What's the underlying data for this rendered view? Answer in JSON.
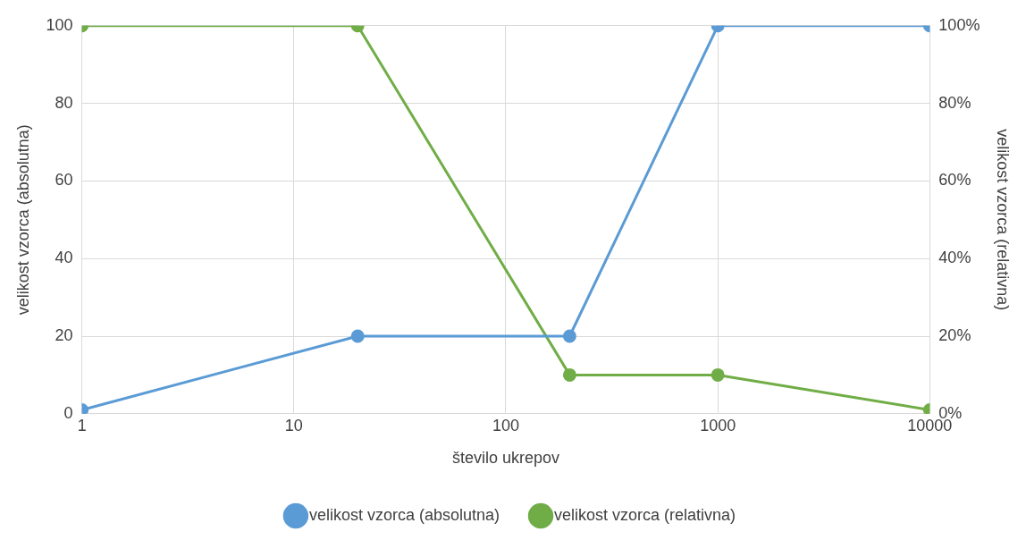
{
  "chart_data": {
    "type": "line",
    "xlabel": "število ukrepov",
    "ylabel": "velikost vzorca (absolutna)",
    "y2label": "velikost vzorca (relativna)",
    "x": [
      1,
      20,
      200,
      1000,
      10000
    ],
    "series": [
      {
        "name": "velikost vzorca (absolutna)",
        "color": "#5b9bd5",
        "values": [
          1,
          20,
          20,
          100,
          100
        ]
      },
      {
        "name": "velikost vzorca (relativna)",
        "color": "#70ad47",
        "values": [
          100,
          100,
          10,
          10,
          1
        ],
        "axis": "y2"
      }
    ],
    "log": "x",
    "xlim": [
      1,
      10000
    ],
    "xticks": [
      1,
      10,
      100,
      1000,
      10000
    ],
    "ylim": [
      0,
      100
    ],
    "yticks": [
      0,
      20,
      40,
      60,
      80,
      100
    ],
    "y2lim": [
      0,
      100
    ],
    "y2ticks": [
      {
        "value": 0,
        "label": "0%"
      },
      {
        "value": 20,
        "label": "20%"
      },
      {
        "value": 40,
        "label": "40%"
      },
      {
        "value": 60,
        "label": "60%"
      },
      {
        "value": 80,
        "label": "80%"
      },
      {
        "value": 100,
        "label": "100%"
      }
    ],
    "grid": true,
    "legend": "bottom",
    "marker": "circle",
    "line_style": "solid"
  }
}
